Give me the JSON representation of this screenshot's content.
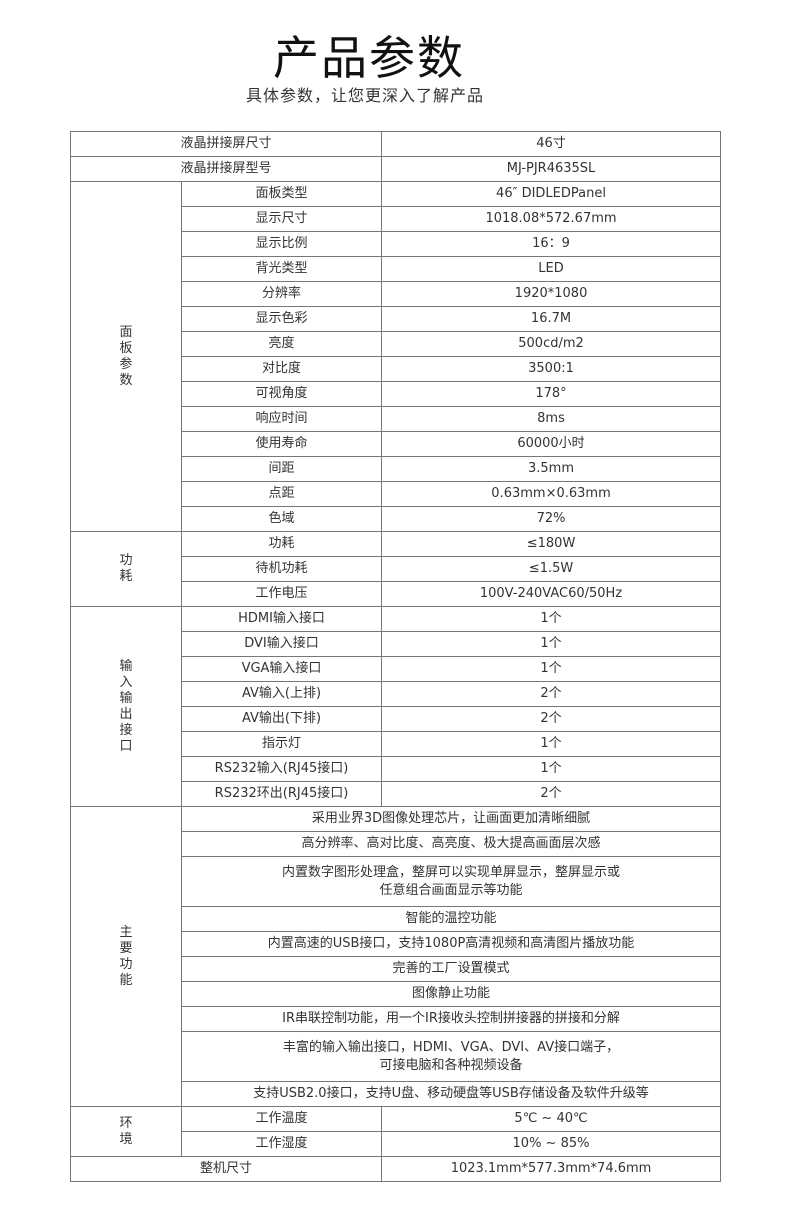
{
  "header": {
    "title": "产品参数",
    "subtitle": "具体参数，让您更深入了解产品"
  },
  "top_rows": [
    {
      "label": "液晶拼接屏尺寸",
      "value": "46寸"
    },
    {
      "label": "液晶拼接屏型号",
      "value": "MJ-PJR4635SL"
    }
  ],
  "groups": [
    {
      "name": "面板参数",
      "rows": [
        {
          "label": "面板类型",
          "value": "46″ DIDLEDPanel"
        },
        {
          "label": "显示尺寸",
          "value": "1018.08*572.67mm"
        },
        {
          "label": "显示比例",
          "value": "16：9"
        },
        {
          "label": "背光类型",
          "value": "LED"
        },
        {
          "label": "分辨率",
          "value": "1920*1080"
        },
        {
          "label": "显示色彩",
          "value": "16.7M"
        },
        {
          "label": "亮度",
          "value": "500cd/m2"
        },
        {
          "label": "对比度",
          "value": "3500:1"
        },
        {
          "label": "可视角度",
          "value": "178°"
        },
        {
          "label": "响应时间",
          "value": "8ms"
        },
        {
          "label": "使用寿命",
          "value": "60000小时"
        },
        {
          "label": "间距",
          "value": "3.5mm"
        },
        {
          "label": "点距",
          "value": "0.63mm×0.63mm"
        },
        {
          "label": "色域",
          "value": "72%"
        }
      ]
    },
    {
      "name": "功耗",
      "rows": [
        {
          "label": "功耗",
          "value": "≤180W"
        },
        {
          "label": "待机功耗",
          "value": "≤1.5W"
        },
        {
          "label": "工作电压",
          "value": "100V-240VAC60/50Hz"
        }
      ]
    },
    {
      "name": "输入输出接口",
      "rows": [
        {
          "label": "HDMI输入接口",
          "value": "1个"
        },
        {
          "label": "DVI输入接口",
          "value": "1个"
        },
        {
          "label": "VGA输入接口",
          "value": "1个"
        },
        {
          "label": "AV输入(上排)",
          "value": "2个"
        },
        {
          "label": "AV输出(下排)",
          "value": "2个"
        },
        {
          "label": "指示灯",
          "value": "1个"
        },
        {
          "label": "RS232输入(RJ45接口)",
          "value": "1个"
        },
        {
          "label": "RS232环出(RJ45接口)",
          "value": "2个"
        }
      ]
    },
    {
      "name": "主要功能",
      "features": [
        [
          "采用业界3D图像处理芯片，让画面更加清晰细腻"
        ],
        [
          "高分辨率、高对比度、高亮度、极大提高画面层次感"
        ],
        [
          "内置数字图形处理盒，整屏可以实现单屏显示，整屏显示或",
          "任意组合画面显示等功能"
        ],
        [
          "智能的温控功能"
        ],
        [
          "内置高速的USB接口，支持1080P高清视频和高清图片播放功能"
        ],
        [
          "完善的工厂设置模式"
        ],
        [
          "图像静止功能"
        ],
        [
          "IR串联控制功能，用一个IR接收头控制拼接器的拼接和分解"
        ],
        [
          "丰富的输入输出接口，HDMI、VGA、DVI、AV接口端子，",
          "可接电脑和各种视频设备"
        ],
        [
          "支持USB2.0接口，支持U盘、移动硬盘等USB存储设备及软件升级等"
        ]
      ]
    },
    {
      "name": "环境",
      "rows": [
        {
          "label": "工作温度",
          "value": "5℃ ~ 40℃"
        },
        {
          "label": "工作湿度",
          "value": "10% ~ 85%"
        }
      ]
    }
  ],
  "bottom_rows": [
    {
      "label": "整机尺寸",
      "value": "1023.1mm*577.3mm*74.6mm"
    }
  ]
}
